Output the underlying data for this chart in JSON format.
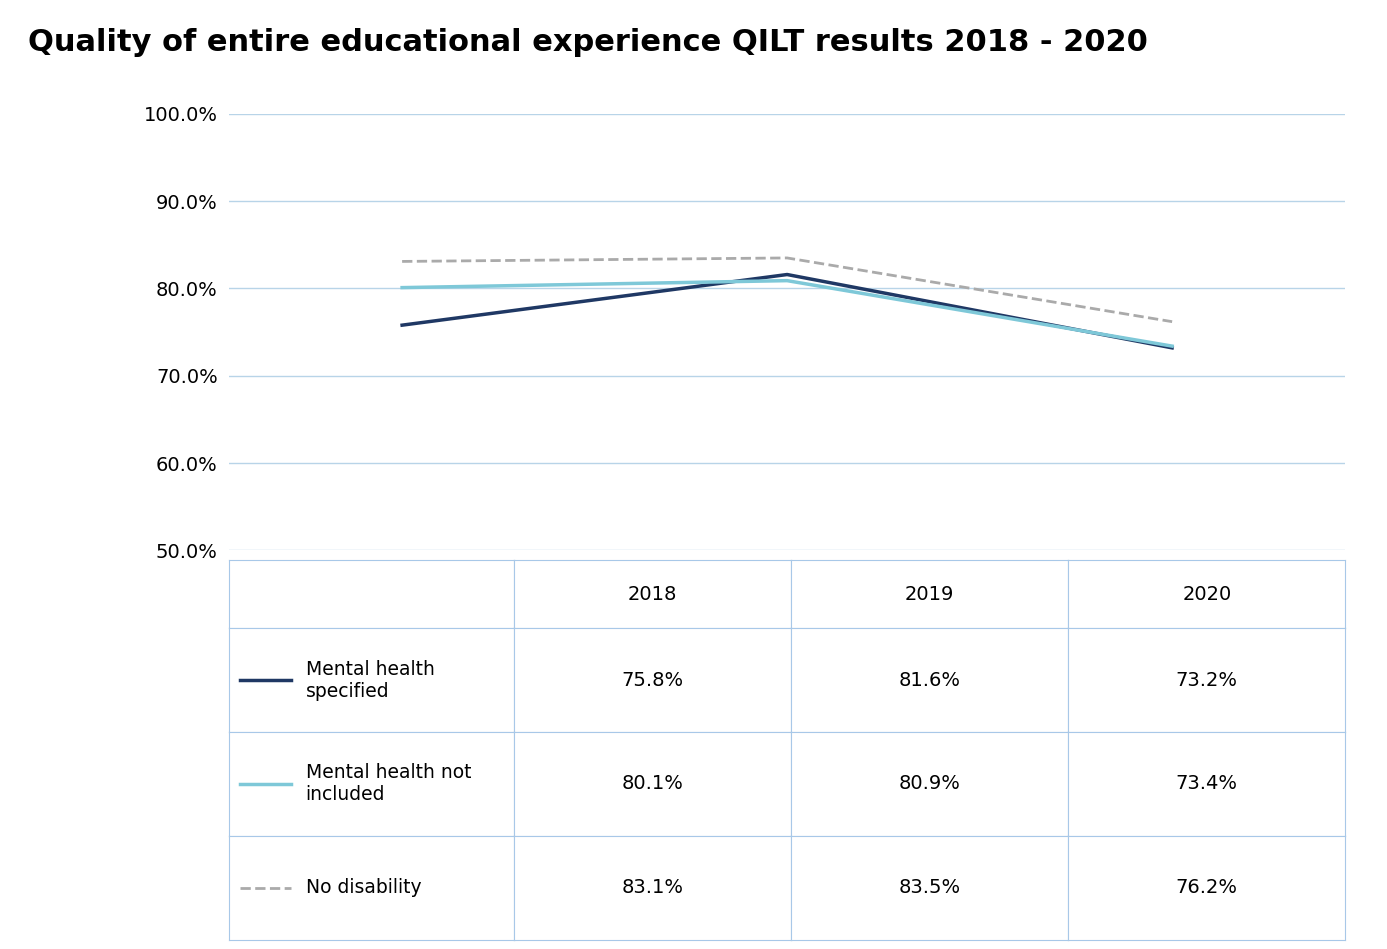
{
  "title": "Quality of entire educational experience QILT results 2018 - 2020",
  "years": [
    2018,
    2019,
    2020
  ],
  "series": [
    {
      "label": "Mental health\nspecified",
      "values": [
        75.8,
        81.6,
        73.2
      ],
      "color": "#1f3864",
      "linestyle": "solid",
      "linewidth": 2.5
    },
    {
      "label": "Mental health not\nincluded",
      "values": [
        80.1,
        80.9,
        73.4
      ],
      "color": "#7ec8d8",
      "linestyle": "solid",
      "linewidth": 2.5
    },
    {
      "label": "No disability",
      "values": [
        83.1,
        83.5,
        76.2
      ],
      "color": "#aaaaaa",
      "linestyle": "dashed",
      "linewidth": 2.0
    }
  ],
  "ylim": [
    50,
    100
  ],
  "yticks": [
    50.0,
    60.0,
    70.0,
    80.0,
    90.0,
    100.0
  ],
  "ytick_labels": [
    "50.0%",
    "60.0%",
    "70.0%",
    "80.0%",
    "90.0%",
    "100.0%"
  ],
  "table_col_labels": [
    "2018",
    "2019",
    "2020"
  ],
  "table_row_data": [
    [
      "75.8%",
      "81.6%",
      "73.2%"
    ],
    [
      "80.1%",
      "80.9%",
      "73.4%"
    ],
    [
      "83.1%",
      "83.5%",
      "76.2%"
    ]
  ],
  "title_fontsize": 22,
  "axis_fontsize": 14,
  "table_fontsize": 14,
  "grid_color": "#b8d4e8",
  "table_border_color": "#a8c8e8",
  "background_color": "#ffffff"
}
